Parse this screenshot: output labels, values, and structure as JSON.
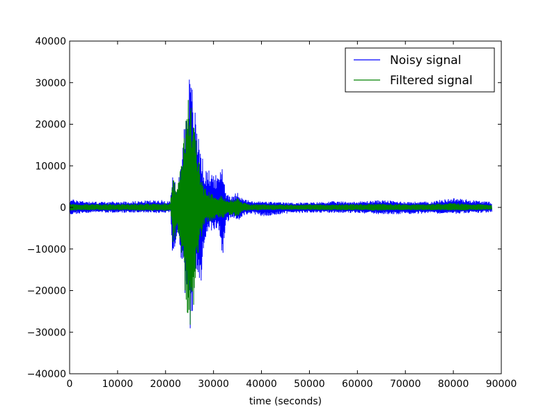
{
  "chart_data": {
    "type": "line",
    "title": "",
    "xlabel": "time (seconds)",
    "ylabel": "",
    "xlim": [
      0,
      90000
    ],
    "ylim": [
      -40000,
      40000
    ],
    "x_ticks": [
      0,
      10000,
      20000,
      30000,
      40000,
      50000,
      60000,
      70000,
      80000,
      90000
    ],
    "y_ticks": [
      -40000,
      -30000,
      -20000,
      -10000,
      0,
      10000,
      20000,
      30000,
      40000
    ],
    "x_tick_labels": [
      "0",
      "10000",
      "20000",
      "30000",
      "40000",
      "50000",
      "60000",
      "70000",
      "80000",
      "90000"
    ],
    "y_tick_labels": [
      "−40000",
      "−30000",
      "−20000",
      "−10000",
      "0",
      "10000",
      "20000",
      "30000",
      "40000"
    ],
    "grid": false,
    "legend_position": "top-right",
    "signal_span": [
      0,
      88000
    ],
    "series": [
      {
        "name": "Noisy signal",
        "color": "#0000ff",
        "envelope": [
          {
            "x": 0,
            "min": -1800,
            "max": 2000
          },
          {
            "x": 5000,
            "min": -1200,
            "max": 1400
          },
          {
            "x": 10000,
            "min": -1300,
            "max": 1400
          },
          {
            "x": 15000,
            "min": -1200,
            "max": 1600
          },
          {
            "x": 19000,
            "min": -1400,
            "max": 1800
          },
          {
            "x": 21000,
            "min": -1200,
            "max": 1500
          },
          {
            "x": 21500,
            "min": -16000,
            "max": 7500
          },
          {
            "x": 22500,
            "min": -9000,
            "max": 5000
          },
          {
            "x": 23500,
            "min": -14000,
            "max": 14000
          },
          {
            "x": 24500,
            "min": -28000,
            "max": 30000
          },
          {
            "x": 25000,
            "min": -30000,
            "max": 32000
          },
          {
            "x": 25500,
            "min": -27000,
            "max": 30000
          },
          {
            "x": 26500,
            "min": -18000,
            "max": 20000
          },
          {
            "x": 27300,
            "min": -22000,
            "max": 16000
          },
          {
            "x": 28000,
            "min": -8000,
            "max": 9000
          },
          {
            "x": 29000,
            "min": -6000,
            "max": 9000
          },
          {
            "x": 30000,
            "min": -5500,
            "max": 8500
          },
          {
            "x": 31000,
            "min": -5000,
            "max": 7000
          },
          {
            "x": 31800,
            "min": -13000,
            "max": 11500
          },
          {
            "x": 32500,
            "min": -4000,
            "max": 4000
          },
          {
            "x": 34000,
            "min": -2500,
            "max": 2500
          },
          {
            "x": 35000,
            "min": -3500,
            "max": 4200
          },
          {
            "x": 36000,
            "min": -2000,
            "max": 2200
          },
          {
            "x": 38000,
            "min": -1500,
            "max": 1500
          },
          {
            "x": 40000,
            "min": -2200,
            "max": 1500
          },
          {
            "x": 45000,
            "min": -1500,
            "max": 1200
          },
          {
            "x": 50000,
            "min": -1300,
            "max": 1200
          },
          {
            "x": 55000,
            "min": -1300,
            "max": 1500
          },
          {
            "x": 60000,
            "min": -1400,
            "max": 1400
          },
          {
            "x": 65000,
            "min": -1700,
            "max": 1800
          },
          {
            "x": 70000,
            "min": -1600,
            "max": 1400
          },
          {
            "x": 75000,
            "min": -1500,
            "max": 1400
          },
          {
            "x": 80000,
            "min": -1600,
            "max": 2300
          },
          {
            "x": 84000,
            "min": -1400,
            "max": 1800
          },
          {
            "x": 88000,
            "min": -1200,
            "max": 1300
          }
        ]
      },
      {
        "name": "Filtered signal",
        "color": "#008000",
        "envelope": [
          {
            "x": 0,
            "min": -800,
            "max": 900
          },
          {
            "x": 5000,
            "min": -700,
            "max": 800
          },
          {
            "x": 10000,
            "min": -700,
            "max": 800
          },
          {
            "x": 15000,
            "min": -800,
            "max": 900
          },
          {
            "x": 19000,
            "min": -800,
            "max": 900
          },
          {
            "x": 21000,
            "min": -900,
            "max": 1000
          },
          {
            "x": 21500,
            "min": -9000,
            "max": 7000
          },
          {
            "x": 22500,
            "min": -6000,
            "max": 4500
          },
          {
            "x": 23500,
            "min": -13000,
            "max": 13000
          },
          {
            "x": 24500,
            "min": -27000,
            "max": 25000
          },
          {
            "x": 25000,
            "min": -29000,
            "max": 27000
          },
          {
            "x": 25500,
            "min": -28000,
            "max": 26000
          },
          {
            "x": 26500,
            "min": -14000,
            "max": 15000
          },
          {
            "x": 27300,
            "min": -8000,
            "max": 9000
          },
          {
            "x": 28000,
            "min": -4500,
            "max": 5000
          },
          {
            "x": 29000,
            "min": -3500,
            "max": 4000
          },
          {
            "x": 30000,
            "min": -3000,
            "max": 3500
          },
          {
            "x": 31000,
            "min": -2500,
            "max": 3000
          },
          {
            "x": 31800,
            "min": -3000,
            "max": 2800
          },
          {
            "x": 32500,
            "min": -2000,
            "max": 2000
          },
          {
            "x": 34000,
            "min": -1800,
            "max": 1800
          },
          {
            "x": 35000,
            "min": -2500,
            "max": 2800
          },
          {
            "x": 36000,
            "min": -1000,
            "max": 1200
          },
          {
            "x": 38000,
            "min": -700,
            "max": 800
          },
          {
            "x": 40000,
            "min": -700,
            "max": 800
          },
          {
            "x": 45000,
            "min": -600,
            "max": 700
          },
          {
            "x": 50000,
            "min": -600,
            "max": 700
          },
          {
            "x": 55000,
            "min": -700,
            "max": 800
          },
          {
            "x": 60000,
            "min": -700,
            "max": 800
          },
          {
            "x": 65000,
            "min": -800,
            "max": 900
          },
          {
            "x": 70000,
            "min": -700,
            "max": 800
          },
          {
            "x": 75000,
            "min": -700,
            "max": 800
          },
          {
            "x": 80000,
            "min": -800,
            "max": 1100
          },
          {
            "x": 84000,
            "min": -700,
            "max": 900
          },
          {
            "x": 88000,
            "min": -600,
            "max": 700
          }
        ]
      }
    ]
  }
}
